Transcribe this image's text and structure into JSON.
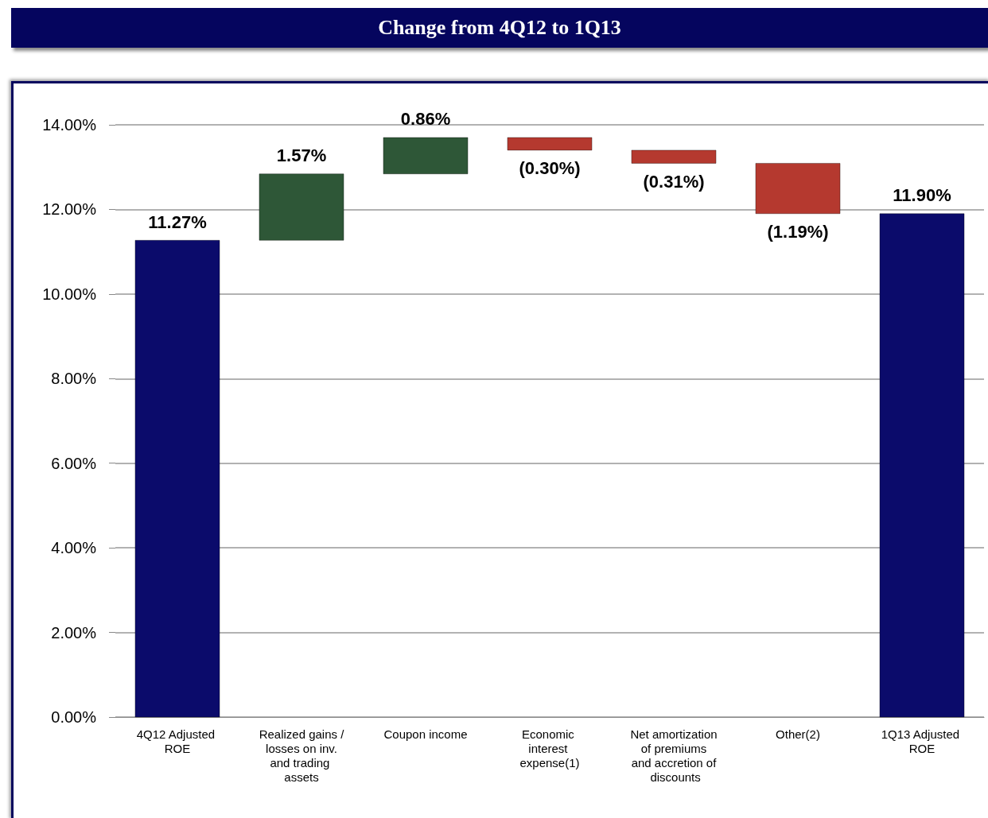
{
  "chart_data": {
    "type": "bar",
    "title": "Change from 4Q12 to 1Q13",
    "categories": [
      "4Q12 Adjusted ROE",
      "Realized gains / losses on inv. and trading assets",
      "Coupon income",
      "Economic interest expense(1)",
      "Net amortization of premiums and accretion of discounts",
      "Other(2)",
      "1Q13 Adjusted ROE"
    ],
    "values": [
      11.27,
      1.57,
      0.86,
      -0.3,
      -0.31,
      -1.19,
      11.9
    ],
    "base": [
      0,
      11.27,
      12.84,
      13.7,
      13.4,
      13.09,
      0
    ],
    "colors": [
      "#0b0b6b",
      "#2e5737",
      "#2e5737",
      "#b5392f",
      "#b5392f",
      "#b5392f",
      "#0b0b6b"
    ],
    "value_labels": [
      "11.27%",
      "1.57%",
      "0.86%",
      "(0.30%)",
      "(0.31%)",
      "(1.19%)",
      "11.90%"
    ],
    "ylim": [
      0,
      14
    ],
    "yticks": [
      {
        "value": 0,
        "label": "0.00%"
      },
      {
        "value": 2,
        "label": "2.00%"
      },
      {
        "value": 4,
        "label": "4.00%"
      },
      {
        "value": 6,
        "label": "6.00%"
      },
      {
        "value": 8,
        "label": "8.00%"
      },
      {
        "value": 10,
        "label": "10.00%"
      },
      {
        "value": 12,
        "label": "12.00%"
      },
      {
        "value": 14,
        "label": "14.00%"
      }
    ],
    "grid": "y"
  }
}
